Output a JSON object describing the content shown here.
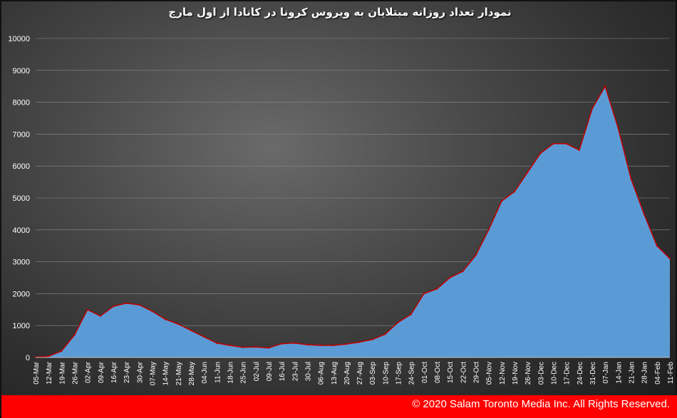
{
  "chart_data": {
    "type": "area",
    "title": "نمودار تعداد روزانه مبتلایان به ویروس کرونا در کانادا از اول مارچ",
    "xlabel": "",
    "ylabel": "",
    "ylim": [
      0,
      10000
    ],
    "y_ticks": [
      "0",
      "1000",
      "2000",
      "3000",
      "4000",
      "5000",
      "6000",
      "7000",
      "8000",
      "9000",
      "10000"
    ],
    "x_ticks": [
      "05-Mar",
      "12-Mar",
      "19-Mar",
      "26-Mar",
      "02-Apr",
      "09-Apr",
      "16-Apr",
      "23-Apr",
      "30-Apr",
      "07-May",
      "14-May",
      "21-May",
      "28-May",
      "04-Jun",
      "11-Jun",
      "18-Jun",
      "25-Jun",
      "02-Jul",
      "09-Jul",
      "16-Jul",
      "23-Jul",
      "30-Jul",
      "06-Aug",
      "13-Aug",
      "20-Aug",
      "27-Aug",
      "03-Sep",
      "10-Sep",
      "17-Sep",
      "24-Sep",
      "01-Oct",
      "08-Oct",
      "15-Oct",
      "22-Oct",
      "29-Oct",
      "05-Nov",
      "12-Nov",
      "19-Nov",
      "26-Nov",
      "03-Dec",
      "10-Dec",
      "17-Dec",
      "24-Dec",
      "31-Dec",
      "07-Jan",
      "14-Jan",
      "21-Jan",
      "28-Jan",
      "04-Feb",
      "11-Feb"
    ],
    "grid": true,
    "colors": {
      "fill": "#5b9bd5",
      "line": "#c00000",
      "grid": "#8a8a8a"
    },
    "x": [
      "05-Mar",
      "12-Mar",
      "19-Mar",
      "26-Mar",
      "02-Apr",
      "09-Apr",
      "16-Apr",
      "23-Apr",
      "30-Apr",
      "07-May",
      "14-May",
      "21-May",
      "28-May",
      "04-Jun",
      "11-Jun",
      "18-Jun",
      "25-Jun",
      "02-Jul",
      "09-Jul",
      "16-Jul",
      "23-Jul",
      "30-Jul",
      "06-Aug",
      "13-Aug",
      "20-Aug",
      "27-Aug",
      "03-Sep",
      "10-Sep",
      "17-Sep",
      "24-Sep",
      "01-Oct",
      "08-Oct",
      "15-Oct",
      "22-Oct",
      "29-Oct",
      "05-Nov",
      "12-Nov",
      "19-Nov",
      "26-Nov",
      "03-Dec",
      "10-Dec",
      "17-Dec",
      "24-Dec",
      "31-Dec",
      "07-Jan",
      "14-Jan",
      "21-Jan",
      "28-Jan",
      "04-Feb",
      "11-Feb"
    ],
    "values": [
      10,
      40,
      200,
      700,
      1500,
      1300,
      1600,
      1700,
      1650,
      1450,
      1200,
      1050,
      850,
      650,
      450,
      380,
      320,
      330,
      300,
      430,
      450,
      400,
      380,
      380,
      420,
      480,
      560,
      730,
      1100,
      1350,
      2000,
      2150,
      2500,
      2700,
      3200,
      4000,
      4900,
      5200,
      5800,
      6400,
      6700,
      6700,
      6500,
      7800,
      8500,
      7200,
      5600,
      4500,
      3500,
      3100
    ]
  },
  "footer": {
    "text": "© 2020 Salam Toronto Media Inc. All Rights Reserved."
  }
}
